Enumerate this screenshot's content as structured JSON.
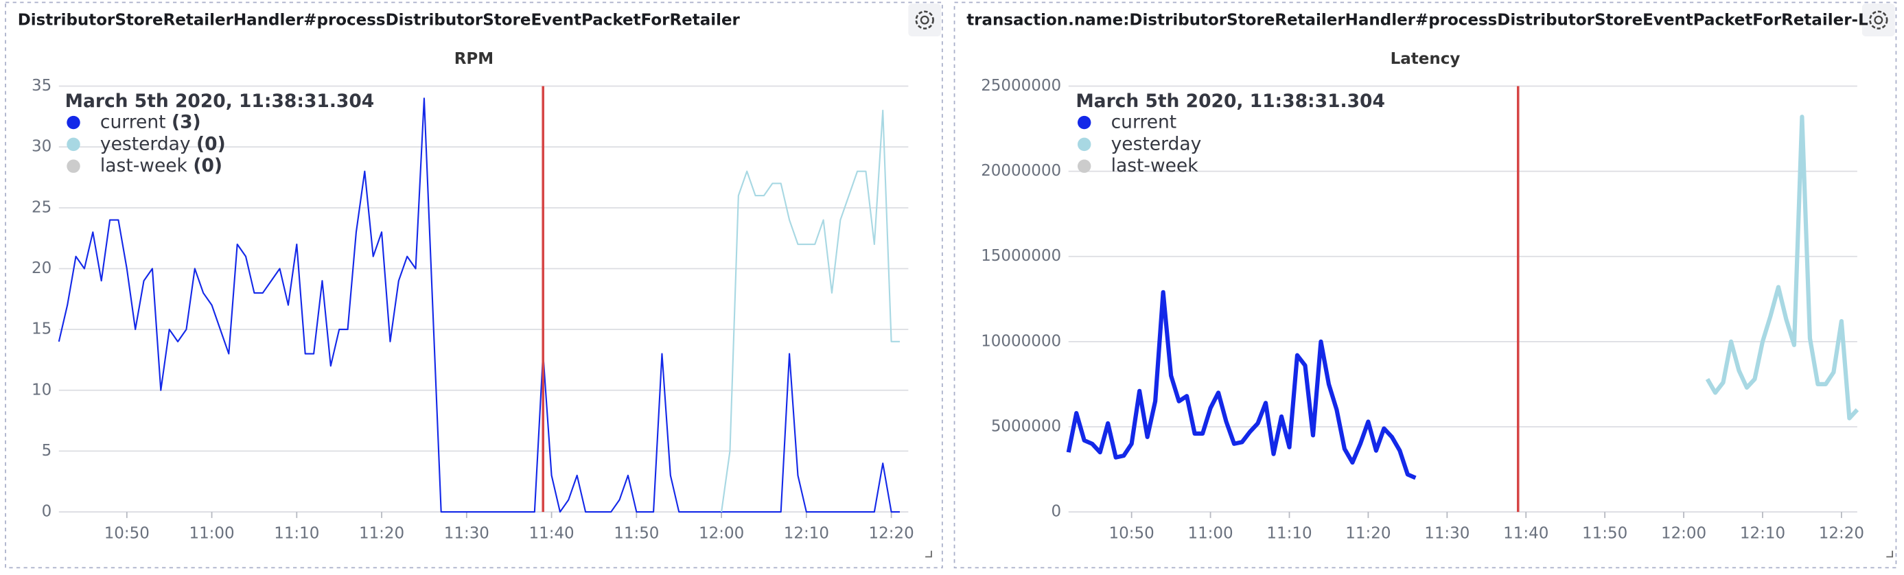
{
  "chart_data": [
    {
      "type": "line",
      "panel_title": "DistributorStoreRetailerHandler#processDistributorStoreEventPacketForRetailer",
      "title": "RPM",
      "xlim": [
        "10:42",
        "12:22"
      ],
      "xticks": [
        "10:50",
        "11:00",
        "11:10",
        "11:20",
        "11:30",
        "11:40",
        "11:50",
        "12:00",
        "12:10",
        "12:20"
      ],
      "ylim": [
        0,
        35
      ],
      "yticks": [
        0,
        5,
        10,
        15,
        20,
        25,
        30,
        35
      ],
      "grid": true,
      "marker": {
        "x": "11:39",
        "color": "#d64545"
      },
      "tooltip": {
        "title": "March 5th 2020, 11:38:31.304",
        "values": [
          "(3)",
          "(0)",
          "(0)"
        ]
      },
      "series": [
        {
          "name": "current",
          "color": "#1328e8",
          "line_width": 1.2,
          "x": [
            "10:42",
            "10:43",
            "10:44",
            "10:45",
            "10:46",
            "10:47",
            "10:48",
            "10:49",
            "10:50",
            "10:51",
            "10:52",
            "10:53",
            "10:54",
            "10:55",
            "10:56",
            "10:57",
            "10:58",
            "10:59",
            "11:00",
            "11:01",
            "11:02",
            "11:03",
            "11:04",
            "11:05",
            "11:06",
            "11:07",
            "11:08",
            "11:09",
            "11:10",
            "11:11",
            "11:12",
            "11:13",
            "11:14",
            "11:15",
            "11:16",
            "11:17",
            "11:18",
            "11:19",
            "11:20",
            "11:21",
            "11:22",
            "11:23",
            "11:24",
            "11:25",
            "11:26",
            "11:27",
            "11:38",
            "11:39",
            "11:40",
            "11:41",
            "11:42",
            "11:43",
            "11:44",
            "11:47",
            "11:48",
            "11:49",
            "11:50",
            "11:52",
            "11:53",
            "11:54",
            "11:55",
            "12:07",
            "12:08",
            "12:09",
            "12:10",
            "12:18",
            "12:19",
            "12:20",
            "12:21"
          ],
          "values": [
            14,
            17,
            21,
            20,
            23,
            19,
            24,
            24,
            20,
            15,
            19,
            20,
            10,
            15,
            14,
            15,
            20,
            18,
            17,
            15,
            13,
            22,
            21,
            18,
            18,
            19,
            20,
            17,
            22,
            13,
            13,
            19,
            12,
            15,
            15,
            23,
            28,
            21,
            23,
            14,
            19,
            21,
            20,
            34,
            17,
            0,
            0,
            13,
            3,
            0,
            1,
            3,
            0,
            0,
            1,
            3,
            0,
            0,
            13,
            3,
            0,
            0,
            13,
            3,
            0,
            0,
            4,
            0,
            0
          ]
        },
        {
          "name": "yesterday",
          "color": "#a8d8e3",
          "line_width": 1.2,
          "x": [
            "12:00",
            "12:01",
            "12:02",
            "12:03",
            "12:04",
            "12:05",
            "12:06",
            "12:07",
            "12:08",
            "12:09",
            "12:10",
            "12:11",
            "12:12",
            "12:13",
            "12:14",
            "12:15",
            "12:16",
            "12:17",
            "12:18",
            "12:19",
            "12:20",
            "12:21"
          ],
          "values": [
            0,
            5,
            26,
            28,
            26,
            26,
            27,
            27,
            24,
            22,
            22,
            22,
            24,
            18,
            24,
            26,
            28,
            28,
            22,
            33,
            14,
            14
          ]
        },
        {
          "name": "last-week",
          "color": "#cccccc",
          "line_width": 1.2,
          "x": [],
          "values": []
        }
      ]
    },
    {
      "type": "line",
      "panel_title": "transaction.name:DistributorStoreRetailerHandler#processDistributorStoreEventPacketForRetailer-L",
      "title": "Latency",
      "xlim": [
        "10:42",
        "12:22"
      ],
      "xticks": [
        "10:50",
        "11:00",
        "11:10",
        "11:20",
        "11:30",
        "11:40",
        "11:50",
        "12:00",
        "12:10",
        "12:20"
      ],
      "ylim": [
        0,
        25000000
      ],
      "yticks": [
        0,
        5000000,
        10000000,
        15000000,
        20000000,
        25000000
      ],
      "grid": true,
      "marker": {
        "x": "11:39",
        "color": "#d64545"
      },
      "tooltip": {
        "title": "March 5th 2020, 11:38:31.304"
      },
      "series": [
        {
          "name": "current",
          "color": "#1328e8",
          "line_width": 3.5,
          "x": [
            "10:42",
            "10:43",
            "10:44",
            "10:45",
            "10:46",
            "10:47",
            "10:48",
            "10:49",
            "10:50",
            "10:51",
            "10:52",
            "10:53",
            "10:54",
            "10:55",
            "10:56",
            "10:57",
            "10:58",
            "10:59",
            "11:00",
            "11:01",
            "11:02",
            "11:03",
            "11:04",
            "11:05",
            "11:06",
            "11:07",
            "11:08",
            "11:09",
            "11:10",
            "11:11",
            "11:12",
            "11:13",
            "11:14",
            "11:15",
            "11:16",
            "11:17",
            "11:18",
            "11:19",
            "11:20",
            "11:21",
            "11:22",
            "11:23",
            "11:24",
            "11:25",
            "11:26"
          ],
          "values": [
            3500000,
            5800000,
            4200000,
            4000000,
            3500000,
            5200000,
            3200000,
            3300000,
            4000000,
            7100000,
            4400000,
            6500000,
            12900000,
            8000000,
            6500000,
            6800000,
            4600000,
            4600000,
            6100000,
            7000000,
            5300000,
            4000000,
            4100000,
            4700000,
            5200000,
            6400000,
            3400000,
            5600000,
            3800000,
            9200000,
            8600000,
            4500000,
            10000000,
            7500000,
            6000000,
            3700000,
            2900000,
            4000000,
            5300000,
            3600000,
            4900000,
            4400000,
            3600000,
            2200000,
            2000000
          ]
        },
        {
          "name": "yesterday",
          "color": "#a8d8e3",
          "line_width": 3.5,
          "x": [
            "12:03",
            "12:04",
            "12:05",
            "12:06",
            "12:07",
            "12:08",
            "12:09",
            "12:10",
            "12:11",
            "12:12",
            "12:13",
            "12:14",
            "12:15",
            "12:16",
            "12:17",
            "12:18",
            "12:19",
            "12:20",
            "12:21",
            "12:22"
          ],
          "values": [
            7800000,
            7000000,
            7600000,
            10000000,
            8300000,
            7300000,
            7800000,
            10000000,
            11500000,
            13200000,
            11300000,
            9800000,
            23200000,
            10200000,
            7500000,
            7500000,
            8200000,
            11200000,
            5500000,
            6000000
          ]
        },
        {
          "name": "last-week",
          "color": "#cccccc",
          "line_width": 3.5,
          "x": [],
          "values": []
        }
      ]
    }
  ]
}
